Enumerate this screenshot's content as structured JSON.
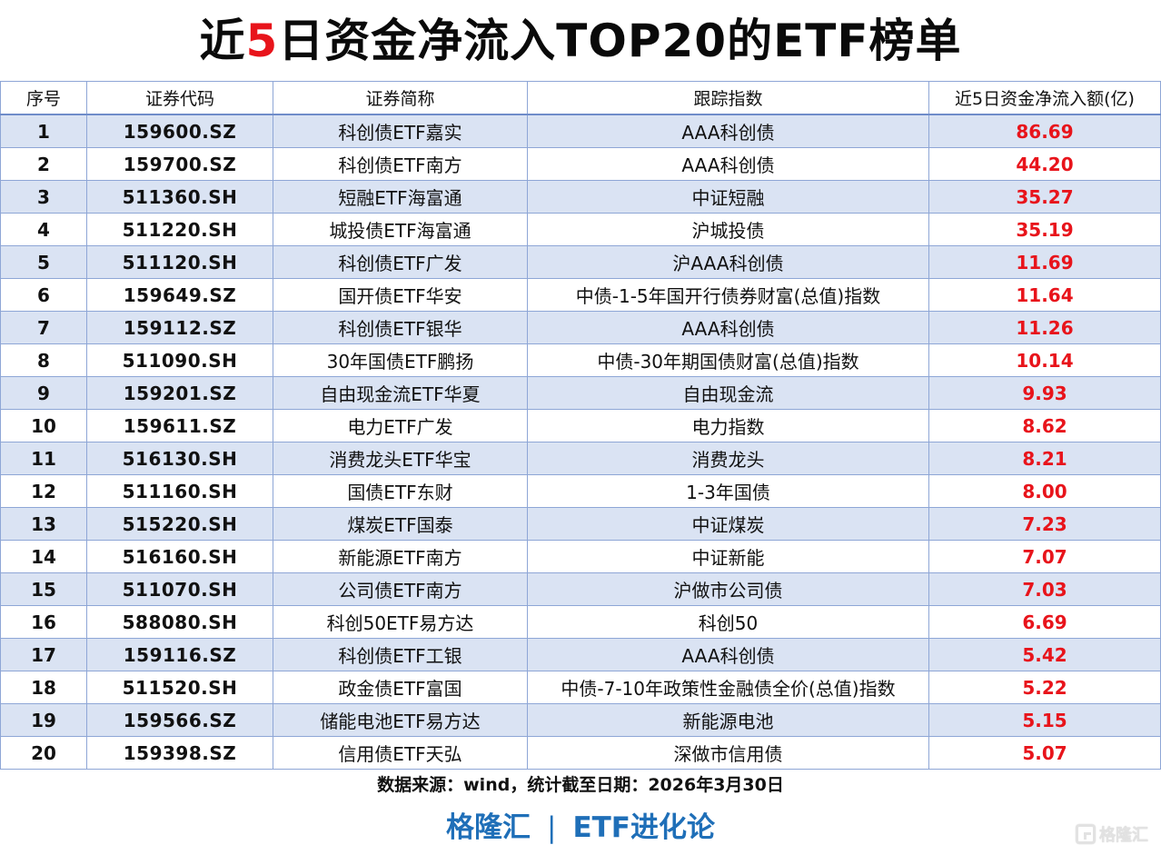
{
  "title": {
    "prefix": "近",
    "accent": "5",
    "suffix": "日资金净流入TOP20的ETF榜单",
    "accent_color": "#e8141b"
  },
  "table": {
    "headers": [
      "序号",
      "证券代码",
      "证券简称",
      "跟踪指数",
      "近5日资金净流入额(亿)"
    ],
    "rows": [
      {
        "rank": "1",
        "code": "159600.SZ",
        "name": "科创债ETF嘉实",
        "index": "AAA科创债",
        "inflow": "86.69"
      },
      {
        "rank": "2",
        "code": "159700.SZ",
        "name": "科创债ETF南方",
        "index": "AAA科创债",
        "inflow": "44.20"
      },
      {
        "rank": "3",
        "code": "511360.SH",
        "name": "短融ETF海富通",
        "index": "中证短融",
        "inflow": "35.27"
      },
      {
        "rank": "4",
        "code": "511220.SH",
        "name": "城投债ETF海富通",
        "index": "沪城投债",
        "inflow": "35.19"
      },
      {
        "rank": "5",
        "code": "511120.SH",
        "name": "科创债ETF广发",
        "index": "沪AAA科创债",
        "inflow": "11.69"
      },
      {
        "rank": "6",
        "code": "159649.SZ",
        "name": "国开债ETF华安",
        "index": "中债-1-5年国开行债券财富(总值)指数",
        "inflow": "11.64"
      },
      {
        "rank": "7",
        "code": "159112.SZ",
        "name": "科创债ETF银华",
        "index": "AAA科创债",
        "inflow": "11.26"
      },
      {
        "rank": "8",
        "code": "511090.SH",
        "name": "30年国债ETF鹏扬",
        "index": "中债-30年期国债财富(总值)指数",
        "inflow": "10.14"
      },
      {
        "rank": "9",
        "code": "159201.SZ",
        "name": "自由现金流ETF华夏",
        "index": "自由现金流",
        "inflow": "9.93"
      },
      {
        "rank": "10",
        "code": "159611.SZ",
        "name": "电力ETF广发",
        "index": "电力指数",
        "inflow": "8.62"
      },
      {
        "rank": "11",
        "code": "516130.SH",
        "name": "消费龙头ETF华宝",
        "index": "消费龙头",
        "inflow": "8.21"
      },
      {
        "rank": "12",
        "code": "511160.SH",
        "name": "国债ETF东财",
        "index": "1-3年国债",
        "inflow": "8.00"
      },
      {
        "rank": "13",
        "code": "515220.SH",
        "name": "煤炭ETF国泰",
        "index": "中证煤炭",
        "inflow": "7.23"
      },
      {
        "rank": "14",
        "code": "516160.SH",
        "name": "新能源ETF南方",
        "index": "中证新能",
        "inflow": "7.07"
      },
      {
        "rank": "15",
        "code": "511070.SH",
        "name": "公司债ETF南方",
        "index": "沪做市公司债",
        "inflow": "7.03"
      },
      {
        "rank": "16",
        "code": "588080.SH",
        "name": "科创50ETF易方达",
        "index": "科创50",
        "inflow": "6.69"
      },
      {
        "rank": "17",
        "code": "159116.SZ",
        "name": "科创债ETF工银",
        "index": "AAA科创债",
        "inflow": "5.42"
      },
      {
        "rank": "18",
        "code": "511520.SH",
        "name": "政金债ETF富国",
        "index": "中债-7-10年政策性金融债全价(总值)指数",
        "inflow": "5.22"
      },
      {
        "rank": "19",
        "code": "159566.SZ",
        "name": "储能电池ETF易方达",
        "index": "新能源电池",
        "inflow": "5.15"
      },
      {
        "rank": "20",
        "code": "159398.SZ",
        "name": "信用债ETF天弘",
        "index": "深做市信用债",
        "inflow": "5.07"
      }
    ],
    "colors": {
      "odd_row_bg": "#dae3f3",
      "even_row_bg": "#ffffff",
      "border": "#8ea6d6",
      "inflow_text": "#e8141b"
    }
  },
  "footer": {
    "source": "数据来源：wind，统计截至日期：2026年3月30日",
    "brand_left": "格隆汇",
    "brand_sep": "|",
    "brand_right": "ETF进化论",
    "brand_color": "#1f6fb8"
  },
  "watermark": {
    "icon": "gelonghui-logo-icon",
    "text": "格隆汇"
  }
}
